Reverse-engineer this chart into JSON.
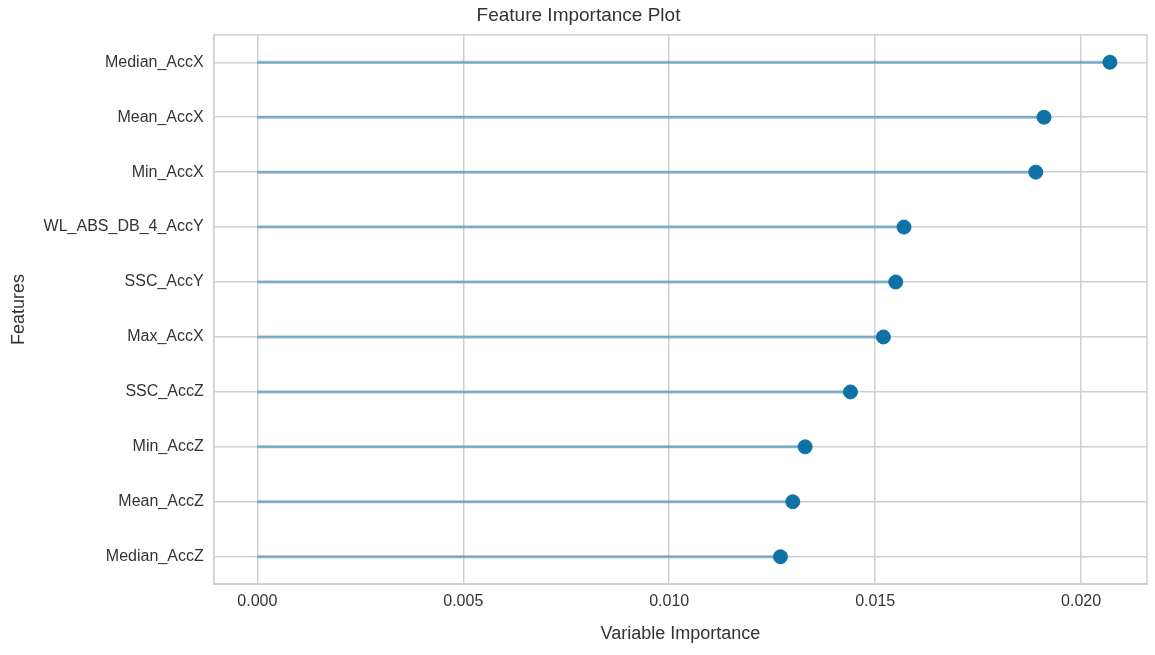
{
  "chart_data": {
    "type": "lollipop",
    "orientation": "horizontal",
    "title": "Feature Importance Plot",
    "xlabel": "Variable Importance",
    "ylabel": "Features",
    "categories": [
      "Median_AccX",
      "Mean_AccX",
      "Min_AccX",
      "WL_ABS_DB_4_AccY",
      "SSC_AccY",
      "Max_AccX",
      "SSC_AccZ",
      "Min_AccZ",
      "Mean_AccZ",
      "Median_AccZ"
    ],
    "values": [
      0.0207,
      0.0191,
      0.0189,
      0.0157,
      0.0155,
      0.0152,
      0.0144,
      0.0133,
      0.013,
      0.0127
    ],
    "color": "#0e72a6",
    "xlim": [
      -0.00106,
      0.0216
    ],
    "xticks": [
      {
        "value": 0,
        "label": "0.000"
      },
      {
        "value": 0.005,
        "label": "0.005"
      },
      {
        "value": 0.01,
        "label": "0.010"
      },
      {
        "value": 0.015,
        "label": "0.015"
      },
      {
        "value": 0.02,
        "label": "0.020"
      }
    ],
    "grid": true,
    "legend": false,
    "marker": "circle"
  }
}
